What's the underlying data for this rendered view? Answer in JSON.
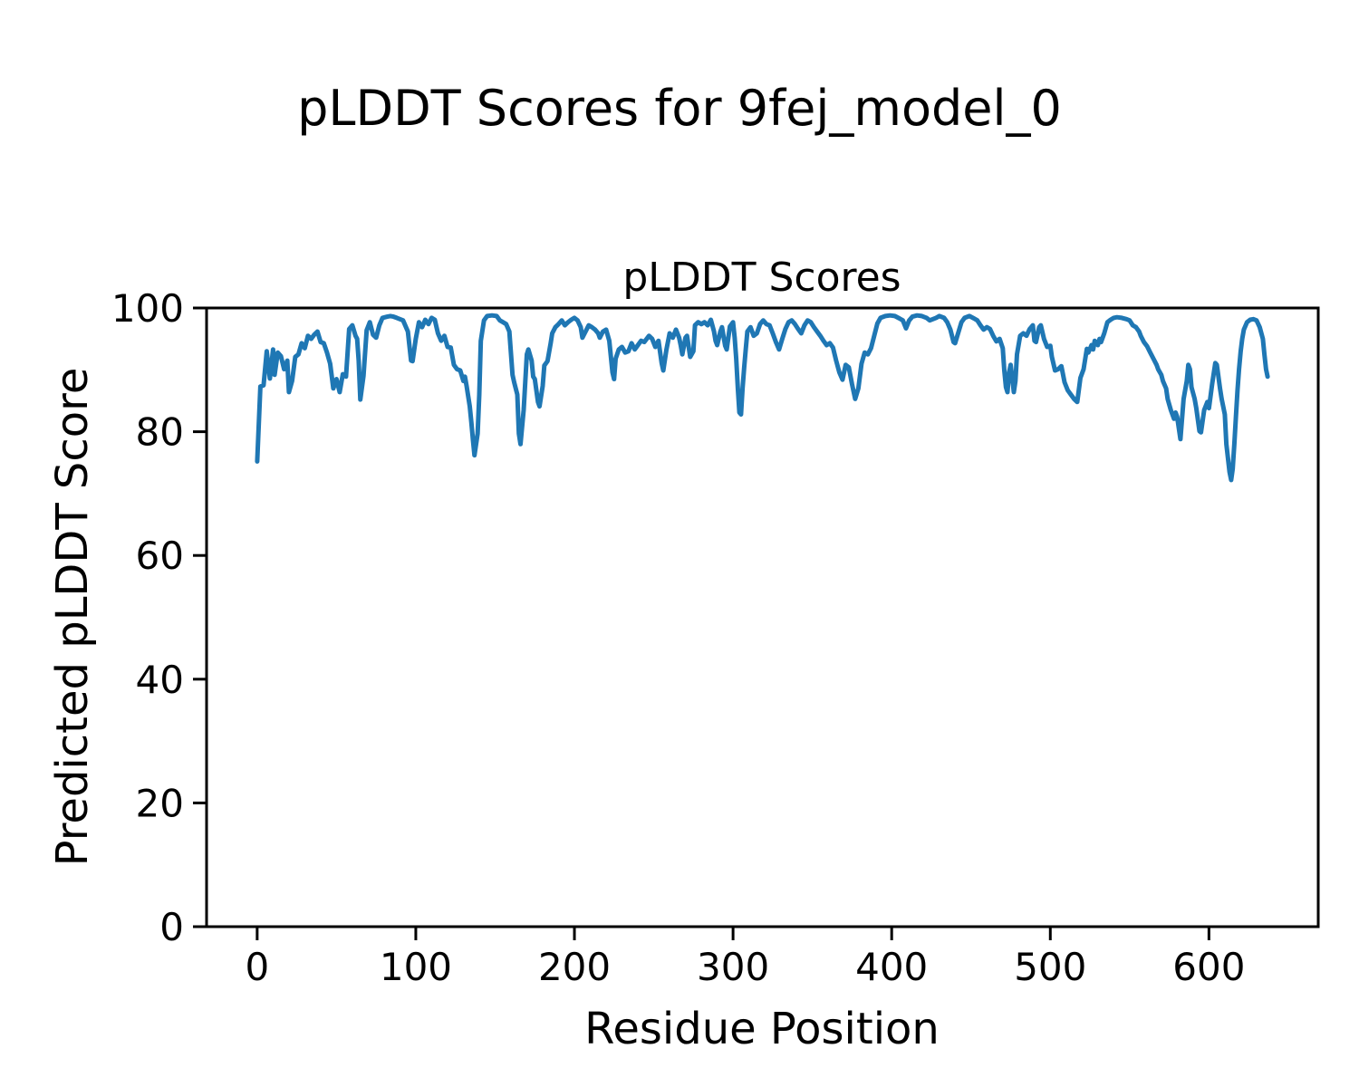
{
  "figure": {
    "suptitle": "pLDDT Scores for 9fej_model_0",
    "background_color": "#ffffff",
    "text_color": "#000000"
  },
  "chart_data": {
    "type": "line",
    "title": "pLDDT Scores",
    "xlabel": "Residue Position",
    "ylabel": "Predicted pLDDT Score",
    "xlim": [
      -31.9,
      668.9
    ],
    "ylim": [
      0,
      100
    ],
    "xticks": [
      0,
      100,
      200,
      300,
      400,
      500,
      600
    ],
    "yticks": [
      0,
      20,
      40,
      60,
      80,
      100
    ],
    "grid": false,
    "legend_position": "none",
    "line_color": "#1f77b4",
    "line_width": 5,
    "series": [
      {
        "name": "pLDDT",
        "x": [
          0,
          2,
          4,
          6,
          8,
          10,
          11,
          13,
          15,
          17,
          19,
          20,
          22,
          24,
          26,
          28,
          30,
          32,
          34,
          36,
          38,
          40,
          42,
          44,
          46,
          48,
          50,
          52,
          54,
          56,
          58,
          60,
          62,
          63,
          64,
          65,
          67,
          69,
          71,
          73,
          75,
          77,
          79,
          82,
          84,
          86,
          88,
          90,
          92,
          95,
          97,
          98,
          100,
          102,
          104,
          106,
          108,
          110,
          112,
          114,
          116,
          118,
          120,
          122,
          124,
          126,
          128,
          130,
          131,
          132,
          134,
          135,
          136,
          137,
          139,
          140,
          141,
          143,
          145,
          148,
          151,
          153,
          155,
          157,
          159,
          161,
          162,
          164,
          165,
          166,
          168,
          170,
          171,
          173,
          174,
          175,
          177,
          178,
          180,
          181,
          183,
          185,
          186,
          188,
          190,
          192,
          194,
          196,
          198,
          200,
          202,
          204,
          205,
          207,
          209,
          211,
          213,
          215,
          216,
          218,
          220,
          222,
          224,
          225,
          226,
          228,
          230,
          232,
          234,
          236,
          238,
          240,
          242,
          244,
          247,
          249,
          251,
          253,
          255,
          256,
          258,
          260,
          262,
          264,
          266,
          267,
          268,
          270,
          271,
          273,
          275,
          276,
          278,
          280,
          282,
          284,
          286,
          288,
          289,
          290,
          292,
          293,
          295,
          296,
          298,
          300,
          301,
          302,
          303,
          304,
          305,
          306,
          307,
          308,
          309,
          311,
          313,
          315,
          317,
          319,
          321,
          323,
          325,
          327,
          329,
          331,
          333,
          335,
          337,
          339,
          341,
          343,
          345,
          347,
          349,
          351,
          353,
          355,
          357,
          359,
          361,
          363,
          365,
          367,
          369,
          371,
          373,
          375,
          377,
          379,
          381,
          383,
          385,
          387,
          389,
          391,
          393,
          396,
          399,
          402,
          405,
          407,
          409,
          411,
          413,
          416,
          419,
          422,
          424,
          426,
          428,
          430,
          433,
          435,
          437,
          439,
          440,
          442,
          444,
          446,
          449,
          452,
          454,
          456,
          458,
          460,
          462,
          464,
          466,
          468,
          470,
          471,
          472,
          473,
          474,
          475,
          476,
          477,
          478,
          479,
          481,
          483,
          485,
          487,
          489,
          490,
          491,
          493,
          494,
          496,
          498,
          500,
          501,
          503,
          505,
          507,
          509,
          511,
          513,
          515,
          517,
          519,
          521,
          523,
          524,
          526,
          527,
          528,
          530,
          531,
          532,
          534,
          536,
          538,
          540,
          542,
          545,
          548,
          550,
          552,
          554,
          556,
          557,
          559,
          561,
          563,
          565,
          567,
          568,
          570,
          571,
          573,
          574,
          576,
          578,
          579,
          580,
          582,
          584,
          586,
          587,
          588,
          589,
          591,
          592,
          594,
          595,
          597,
          599,
          600,
          602,
          604,
          605,
          607,
          608,
          610,
          611,
          613,
          614,
          615,
          616,
          617,
          618,
          619,
          620,
          621,
          622,
          624,
          626,
          628,
          630,
          632,
          634,
          635,
          636,
          637
        ],
        "y": [
          75.2,
          87.3,
          87.5,
          93.0,
          88.6,
          93.3,
          89.2,
          92.8,
          92.2,
          90.1,
          91.5,
          86.4,
          88.2,
          92.1,
          92.5,
          94.3,
          93.5,
          95.5,
          95.0,
          95.7,
          96.2,
          94.5,
          94.3,
          92.8,
          91.0,
          87.0,
          88.5,
          86.4,
          89.3,
          88.9,
          96.6,
          97.2,
          95.5,
          95.0,
          91.5,
          85.2,
          89.0,
          96.4,
          97.7,
          95.7,
          95.2,
          97.2,
          98.4,
          98.6,
          98.7,
          98.6,
          98.4,
          98.2,
          98.0,
          96.2,
          91.5,
          91.4,
          95.0,
          97.7,
          96.9,
          98.1,
          97.4,
          98.4,
          98.1,
          95.9,
          94.7,
          95.5,
          93.7,
          93.6,
          90.8,
          90.1,
          89.9,
          88.2,
          88.9,
          87.4,
          84.1,
          81.6,
          78.7,
          76.2,
          79.7,
          86.0,
          94.7,
          98.0,
          98.7,
          98.8,
          98.7,
          98.0,
          97.7,
          97.4,
          96.2,
          89.2,
          88.0,
          86.0,
          79.7,
          78.0,
          83.5,
          92.5,
          93.3,
          91.5,
          88.9,
          88.5,
          84.8,
          84.1,
          87.4,
          90.7,
          91.4,
          94.3,
          95.9,
          96.9,
          97.4,
          98.0,
          97.2,
          97.7,
          98.1,
          98.4,
          98.0,
          96.9,
          95.2,
          96.2,
          97.2,
          96.9,
          96.5,
          95.9,
          95.2,
          96.2,
          96.5,
          94.7,
          89.6,
          88.5,
          91.8,
          93.3,
          93.7,
          92.8,
          93.0,
          94.3,
          93.3,
          94.0,
          94.7,
          94.5,
          95.5,
          95.0,
          93.7,
          94.7,
          91.1,
          89.9,
          93.3,
          95.9,
          95.2,
          96.5,
          95.2,
          94.0,
          92.5,
          95.2,
          95.5,
          92.1,
          93.0,
          97.2,
          97.7,
          97.4,
          97.7,
          97.2,
          98.1,
          96.2,
          94.7,
          94.0,
          96.2,
          96.9,
          93.9,
          93.3,
          97.0,
          97.7,
          95.2,
          91.8,
          87.0,
          83.1,
          82.8,
          87.0,
          90.4,
          93.3,
          96.2,
          96.9,
          95.5,
          95.9,
          97.4,
          98.0,
          97.4,
          97.2,
          95.9,
          94.5,
          93.3,
          95.0,
          96.6,
          97.7,
          98.0,
          97.4,
          96.6,
          95.9,
          97.2,
          98.0,
          97.7,
          96.9,
          96.2,
          95.5,
          94.7,
          94.0,
          94.3,
          93.6,
          91.5,
          89.6,
          88.4,
          90.8,
          90.4,
          87.7,
          85.3,
          87.0,
          91.0,
          92.8,
          92.5,
          93.5,
          95.5,
          97.5,
          98.4,
          98.7,
          98.8,
          98.7,
          98.3,
          98.0,
          96.7,
          98.0,
          98.6,
          98.8,
          98.7,
          98.4,
          98.0,
          98.2,
          98.4,
          98.7,
          98.4,
          97.7,
          96.5,
          94.5,
          94.3,
          96.0,
          97.7,
          98.4,
          98.7,
          98.3,
          98.0,
          97.2,
          96.5,
          96.9,
          96.6,
          95.5,
          94.6,
          95.0,
          93.5,
          89.9,
          87.2,
          86.4,
          89.6,
          90.8,
          88.7,
          86.4,
          88.2,
          92.5,
          95.5,
          95.9,
          95.5,
          96.6,
          97.2,
          94.7,
          94.5,
          96.9,
          97.2,
          95.0,
          93.7,
          93.9,
          92.1,
          89.9,
          90.1,
          90.6,
          88.0,
          86.7,
          86.0,
          85.3,
          84.8,
          88.7,
          90.1,
          93.4,
          92.8,
          94.0,
          93.3,
          94.7,
          94.0,
          95.0,
          94.5,
          95.9,
          97.7,
          98.1,
          98.4,
          98.5,
          98.4,
          98.2,
          98.0,
          97.2,
          96.9,
          96.2,
          95.5,
          94.5,
          93.8,
          92.8,
          91.8,
          90.8,
          90.1,
          89.2,
          88.2,
          87.0,
          85.3,
          83.5,
          82.1,
          83.1,
          82.4,
          78.8,
          85.3,
          88.2,
          90.8,
          90.1,
          87.2,
          85.3,
          83.8,
          80.1,
          79.9,
          83.5,
          84.8,
          83.8,
          87.7,
          91.1,
          90.8,
          87.0,
          85.3,
          82.8,
          78.0,
          73.5,
          72.2,
          74.0,
          78.0,
          82.3,
          86.7,
          90.1,
          93.0,
          95.0,
          96.5,
          97.7,
          98.1,
          98.2,
          98.0,
          96.9,
          95.0,
          92.5,
          90.1,
          88.9
        ]
      }
    ]
  }
}
